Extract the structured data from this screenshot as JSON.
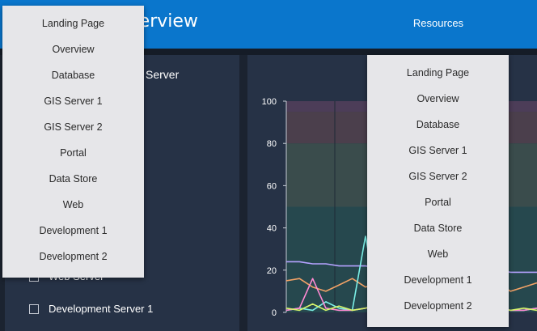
{
  "header": {
    "title": "Resources Overview",
    "resources_label": "Resources"
  },
  "left_panel": {
    "title": "GIS Server",
    "servers": [
      {
        "label": "Web Server"
      },
      {
        "label": "Development Server 1"
      }
    ]
  },
  "chart_data": {
    "type": "line",
    "ylim": [
      0,
      100
    ],
    "yticks": [
      "100",
      "80",
      "60",
      "40",
      "20",
      "0"
    ],
    "bands": [
      {
        "from": 95,
        "to": 100,
        "color": "#4c3d58"
      },
      {
        "from": 80,
        "to": 95,
        "color": "#4b3f4c"
      },
      {
        "from": 50,
        "to": 80,
        "color": "#3a4c4c"
      },
      {
        "from": 0,
        "to": 50,
        "color": "#26484e"
      }
    ],
    "series": [
      {
        "color": "#b5a2ff",
        "values": [
          24,
          24,
          23,
          23,
          22,
          22,
          22,
          21,
          21,
          21,
          22,
          21,
          21,
          21,
          20,
          20,
          20,
          19,
          19,
          19
        ]
      },
      {
        "color": "#f2a266",
        "values": [
          15,
          16,
          12,
          10,
          13,
          16,
          12,
          14,
          10,
          41,
          8,
          14,
          12,
          10,
          16,
          12,
          14,
          10,
          12,
          14
        ]
      },
      {
        "color": "#7cf0e7",
        "values": [
          1,
          2,
          1,
          5,
          2,
          1,
          36,
          3,
          1,
          1,
          2,
          1,
          1,
          2,
          1,
          1,
          2,
          1,
          1,
          2
        ]
      },
      {
        "color": "#ff8ad4",
        "values": [
          1,
          2,
          16,
          2,
          1,
          1,
          2,
          3,
          1,
          2,
          16,
          2,
          1,
          2,
          1,
          1,
          2,
          1,
          1,
          2
        ]
      },
      {
        "color": "#d8f56b",
        "values": [
          2,
          1,
          4,
          1,
          3,
          1,
          2,
          4,
          1,
          2,
          1,
          3,
          1,
          2,
          3,
          1,
          2,
          1,
          2,
          1
        ]
      }
    ]
  },
  "dropdown_left": {
    "items": [
      "Landing Page",
      "Overview",
      "Database",
      "GIS Server 1",
      "GIS Server 2",
      "Portal",
      "Data Store",
      "Web",
      "Development 1",
      "Development 2"
    ]
  },
  "dropdown_right": {
    "items": [
      "Landing Page",
      "Overview",
      "Database",
      "GIS Server 1",
      "GIS Server 2",
      "Portal",
      "Data Store",
      "Web",
      "Development 1",
      "Development 2"
    ]
  }
}
